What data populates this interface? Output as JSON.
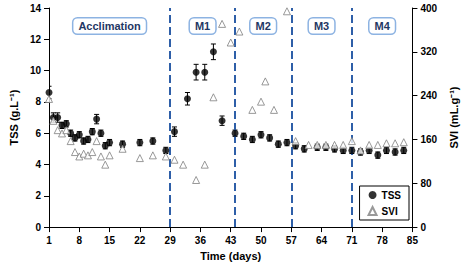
{
  "chart_data": {
    "type": "scatter",
    "x_label": "Time (days)",
    "y_label": "TSS (g.L⁻¹)",
    "y2_label": "SVI (mL.g⁻¹)",
    "xlim": [
      1,
      85
    ],
    "xticks": [
      1,
      8,
      15,
      22,
      29,
      36,
      43,
      50,
      57,
      64,
      71,
      78,
      85
    ],
    "ylim": [
      0,
      14
    ],
    "yticks": [
      0,
      2,
      4,
      6,
      8,
      10,
      12,
      14
    ],
    "y2lim": [
      0,
      400
    ],
    "y2ticks": [
      0,
      80,
      160,
      240,
      320,
      400
    ],
    "grid": false,
    "legend": "lower right",
    "phase_boundaries": [
      29,
      44,
      57,
      71
    ],
    "phases": [
      "Acclimation",
      "M1",
      "M2",
      "M3",
      "M4"
    ],
    "series": [
      {
        "name": "TSS",
        "color": "#000000",
        "marker": "circle",
        "x": [
          1,
          2,
          3,
          4,
          5,
          6,
          7,
          8,
          9,
          10,
          11,
          12,
          13,
          14,
          15,
          18,
          22,
          25,
          28,
          30,
          33,
          35,
          37,
          39,
          41,
          44,
          46,
          48,
          50,
          52,
          54,
          56,
          58,
          60,
          63,
          65,
          67,
          69,
          71,
          73,
          75,
          77,
          79,
          81,
          83
        ],
        "values": [
          8.6,
          7.0,
          7.0,
          6.5,
          6.6,
          6.0,
          5.7,
          5.9,
          5.5,
          5.6,
          6.1,
          6.9,
          6.0,
          5.2,
          5.4,
          5.3,
          5.4,
          5.5,
          4.9,
          6.1,
          8.2,
          9.9,
          9.9,
          11.2,
          6.8,
          6.0,
          5.8,
          5.6,
          5.9,
          5.7,
          5.3,
          5.4,
          5.2,
          5.0,
          5.1,
          5.1,
          5.0,
          4.9,
          4.9,
          4.8,
          4.9,
          4.6,
          4.9,
          4.8,
          4.9
        ],
        "errors": [
          0.4,
          0.3,
          0.3,
          0.2,
          0.2,
          0.2,
          0.2,
          0.2,
          0.2,
          0.2,
          0.2,
          0.3,
          0.2,
          0.2,
          0.2,
          0.2,
          0.2,
          0.2,
          0.2,
          0.3,
          0.4,
          0.5,
          0.5,
          0.5,
          0.3,
          0.2,
          0.2,
          0.2,
          0.2,
          0.2,
          0.2,
          0.2,
          0.2,
          0.2,
          0.2,
          0.2,
          0.2,
          0.2,
          0.2,
          0.2,
          0.2,
          0.2,
          0.2,
          0.2,
          0.2
        ]
      },
      {
        "name": "SVI",
        "color": "#808080",
        "marker": "triangle",
        "axis": "y2",
        "x": [
          1,
          2,
          3,
          4,
          5,
          6,
          7,
          8,
          9,
          10,
          11,
          12,
          13,
          14,
          15,
          18,
          22,
          25,
          28,
          30,
          32,
          35,
          37,
          39,
          41,
          43,
          45,
          48,
          50,
          51,
          53,
          56,
          58,
          61,
          63,
          65,
          67,
          69,
          71,
          73,
          75,
          77,
          79,
          81,
          83
        ],
        "values": [
          234,
          194,
          177,
          171,
          177,
          157,
          137,
          129,
          134,
          131,
          137,
          157,
          129,
          114,
          131,
          143,
          126,
          131,
          129,
          123,
          114,
          86,
          114,
          237,
          371,
          337,
          357,
          214,
          229,
          266,
          214,
          394,
          157,
          150,
          150,
          150,
          150,
          150,
          157,
          140,
          150,
          150,
          153,
          153,
          155
        ]
      }
    ]
  }
}
